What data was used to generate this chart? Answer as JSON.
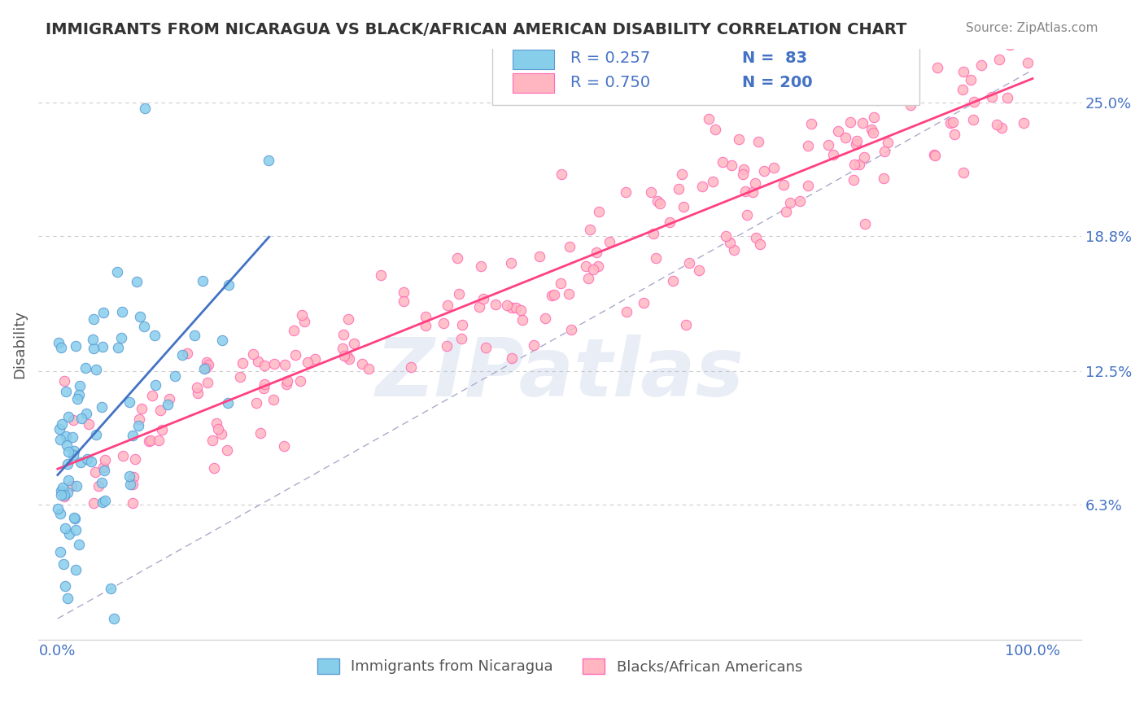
{
  "title": "IMMIGRANTS FROM NICARAGUA VS BLACK/AFRICAN AMERICAN DISABILITY CORRELATION CHART",
  "source": "Source: ZipAtlas.com",
  "xlabel": "",
  "ylabel": "Disability",
  "watermark": "ZIPatlas",
  "legend_r1": "R = 0.257",
  "legend_n1": "N =  83",
  "legend_r2": "R = 0.750",
  "legend_n2": "N = 200",
  "series1_label": "Immigrants from Nicaragua",
  "series2_label": "Blacks/African Americans",
  "color1": "#87CEEB",
  "color1_dark": "#5B9BD5",
  "color1_line": "#4472C4",
  "color2": "#FFB6C1",
  "color2_dark": "#FF69B4",
  "color2_line": "#FF4081",
  "ytick_labels": [
    "6.3%",
    "12.5%",
    "18.8%",
    "25.0%"
  ],
  "ytick_values": [
    0.063,
    0.125,
    0.188,
    0.25
  ],
  "xtick_labels": [
    "0.0%",
    "100.0%"
  ],
  "xtick_values": [
    0.0,
    1.0
  ],
  "xlim": [
    -0.02,
    1.05
  ],
  "ylim": [
    0.0,
    0.275
  ],
  "background_color": "#FFFFFF",
  "grid_color": "#CCCCCC",
  "title_color": "#333333",
  "label_color": "#4472C4",
  "seed1": 42,
  "seed2": 99,
  "N1": 83,
  "N2": 200,
  "R1": 0.257,
  "R2": 0.75
}
